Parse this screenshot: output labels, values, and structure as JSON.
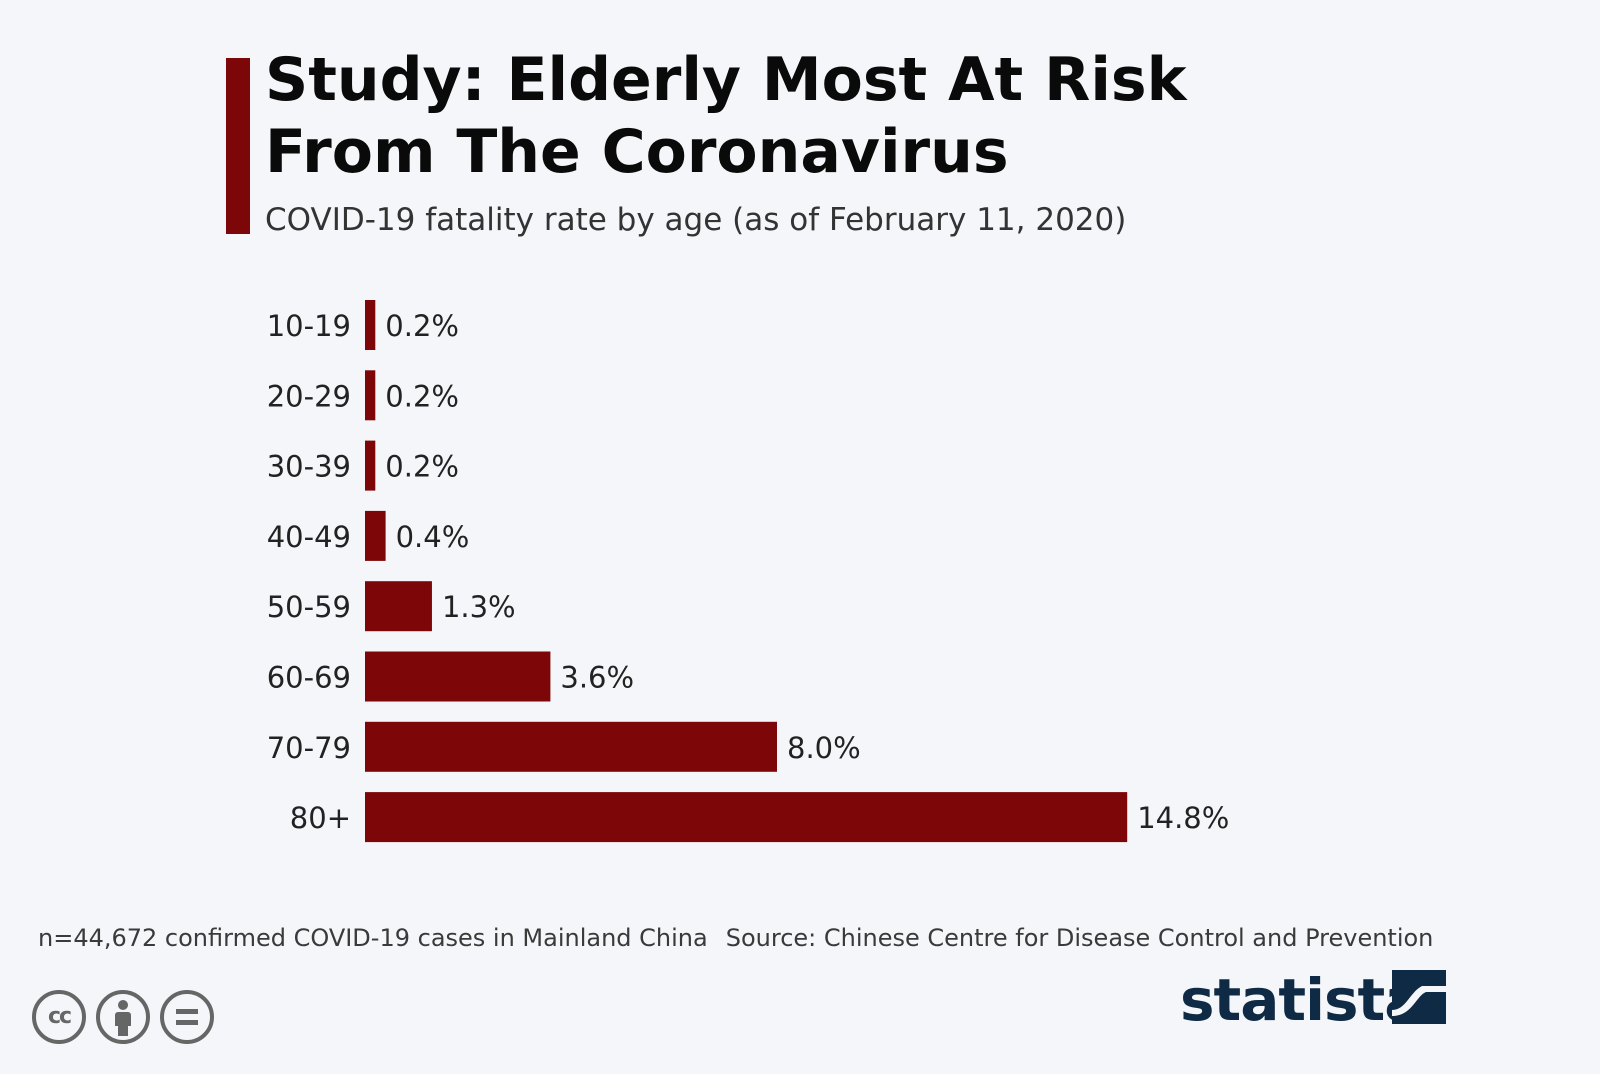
{
  "header": {
    "title_line1": "Study: Elderly Most At Risk",
    "title_line2": "From The Coronavirus",
    "subtitle": "COVID-19 fatality rate by age (as of February 11, 2020)"
  },
  "chart_data": {
    "type": "bar",
    "orientation": "horizontal",
    "categories": [
      "10-19",
      "20-29",
      "30-39",
      "40-49",
      "50-59",
      "60-69",
      "70-79",
      "80+"
    ],
    "values": [
      0.2,
      0.2,
      0.2,
      0.4,
      1.3,
      3.6,
      8.0,
      14.8
    ],
    "value_labels": [
      "0.2%",
      "0.2%",
      "0.2%",
      "0.4%",
      "1.3%",
      "3.6%",
      "8.0%",
      "14.8%"
    ],
    "unit": "%",
    "title": "Study: Elderly Most At Risk From The Coronavirus",
    "subtitle": "COVID-19 fatality rate by age (as of February 11, 2020)",
    "xlabel": "",
    "ylabel": "",
    "xlim": [
      0,
      15
    ],
    "grid": false,
    "legend": "none",
    "bar_color": "#7d0609"
  },
  "footer": {
    "note": "n=44,672 confirmed COVID-19 cases in Mainland China",
    "source": "Source: Chinese Centre for Disease Control and Prevention",
    "license_icons": [
      "cc-icon",
      "attribution-icon",
      "no-derivatives-icon"
    ],
    "brand": "statista",
    "brand_icon": "statista-logo-icon",
    "brand_color": "#0f2a44"
  }
}
